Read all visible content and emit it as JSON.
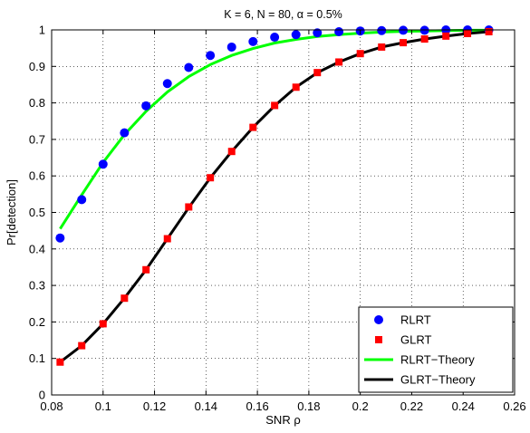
{
  "chart_data": {
    "type": "line",
    "title": "K = 6,  N = 80, α = 0.5%",
    "xlabel": "SNR ρ",
    "ylabel": "Pr[detection]",
    "xlim": [
      0.08,
      0.26
    ],
    "ylim": [
      0,
      1
    ],
    "xticks": [
      0.08,
      0.1,
      0.12,
      0.14,
      0.16,
      0.18,
      0.2,
      0.22,
      0.24,
      0.26
    ],
    "xtick_labels": [
      "0.08",
      "0.1",
      "0.12",
      "0.14",
      "0.16",
      "0.18",
      "0.2",
      "0.22",
      "0.24",
      "0.26"
    ],
    "yticks": [
      0,
      0.1,
      0.2,
      0.3,
      0.4,
      0.5,
      0.6,
      0.7,
      0.8,
      0.9,
      1
    ],
    "ytick_labels": [
      "0",
      "0.1",
      "0.2",
      "0.3",
      "0.4",
      "0.5",
      "0.6",
      "0.7",
      "0.8",
      "0.9",
      "1"
    ],
    "grid": true,
    "legend_position": "bottom-right",
    "series": [
      {
        "name": "RLRT",
        "style": "marker",
        "marker": "circle",
        "color": "#0000ff",
        "x": [
          0.0833,
          0.0917,
          0.1,
          0.1083,
          0.1167,
          0.125,
          0.1333,
          0.1417,
          0.15,
          0.1583,
          0.1667,
          0.175,
          0.1833,
          0.1917,
          0.2,
          0.2083,
          0.2167,
          0.225,
          0.2333,
          0.2417,
          0.25
        ],
        "y": [
          0.43,
          0.535,
          0.632,
          0.718,
          0.792,
          0.853,
          0.897,
          0.93,
          0.953,
          0.968,
          0.98,
          0.987,
          0.992,
          0.995,
          0.997,
          0.998,
          0.999,
          0.999,
          1.0,
          1.0,
          1.0
        ]
      },
      {
        "name": "GLRT",
        "style": "marker",
        "marker": "square",
        "color": "#ff0000",
        "x": [
          0.0833,
          0.0917,
          0.1,
          0.1083,
          0.1167,
          0.125,
          0.1333,
          0.1417,
          0.15,
          0.1583,
          0.1667,
          0.175,
          0.1833,
          0.1917,
          0.2,
          0.2083,
          0.2167,
          0.225,
          0.2333,
          0.2417,
          0.25
        ],
        "y": [
          0.09,
          0.135,
          0.195,
          0.265,
          0.343,
          0.428,
          0.515,
          0.595,
          0.667,
          0.733,
          0.793,
          0.843,
          0.883,
          0.912,
          0.935,
          0.953,
          0.965,
          0.975,
          0.983,
          0.99,
          0.995
        ]
      },
      {
        "name": "RLRT−Theory",
        "style": "line",
        "color": "#00ff00",
        "x": [
          0.0833,
          0.0917,
          0.1,
          0.1083,
          0.1167,
          0.125,
          0.1333,
          0.1417,
          0.15,
          0.1583,
          0.1667,
          0.175,
          0.1833,
          0.1917,
          0.2,
          0.2083,
          0.2167,
          0.225,
          0.2333,
          0.2417,
          0.25
        ],
        "y": [
          0.455,
          0.548,
          0.637,
          0.713,
          0.777,
          0.83,
          0.872,
          0.905,
          0.93,
          0.949,
          0.964,
          0.974,
          0.982,
          0.987,
          0.991,
          0.994,
          0.996,
          0.997,
          0.998,
          0.999,
          0.999
        ]
      },
      {
        "name": "GLRT−Theory",
        "style": "line",
        "color": "#000000",
        "x": [
          0.0833,
          0.0917,
          0.1,
          0.1083,
          0.1167,
          0.125,
          0.1333,
          0.1417,
          0.15,
          0.1583,
          0.1667,
          0.175,
          0.1833,
          0.1917,
          0.2,
          0.2083,
          0.2167,
          0.225,
          0.2333,
          0.2417,
          0.25
        ],
        "y": [
          0.09,
          0.135,
          0.195,
          0.265,
          0.343,
          0.428,
          0.513,
          0.595,
          0.667,
          0.733,
          0.792,
          0.843,
          0.883,
          0.912,
          0.935,
          0.953,
          0.965,
          0.975,
          0.983,
          0.99,
          0.995
        ]
      }
    ]
  }
}
